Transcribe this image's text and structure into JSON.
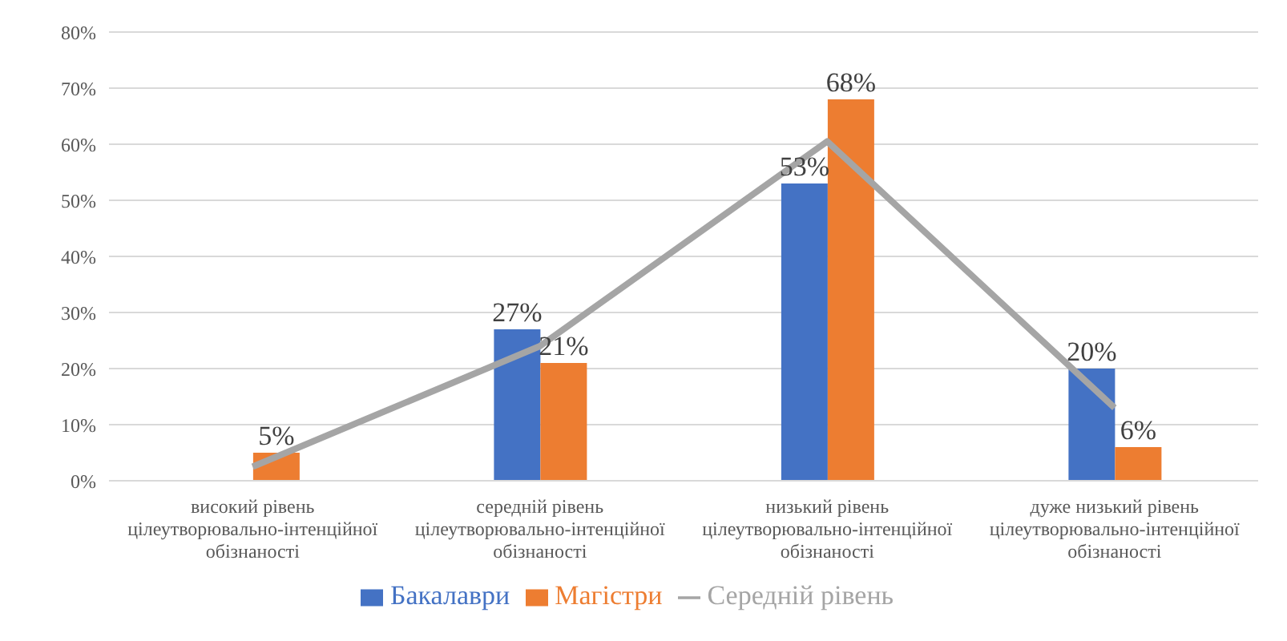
{
  "chart_data": {
    "type": "bar",
    "categories": [
      "високий рівень цілеутворювально-інтенційної обізнаності",
      "середній рівень цілеутворювально-інтенційної обізнаності",
      "низький рівень цілеутворювально-інтенційної обізнаності",
      "дуже низький рівень цілеутворювально-інтенційної обізнаності"
    ],
    "series": [
      {
        "name": "Бакалаври",
        "color": "#4472c4",
        "values": [
          null,
          27,
          53,
          20
        ],
        "value_labels": [
          null,
          "27%",
          "53%",
          "20%"
        ]
      },
      {
        "name": "Магістри",
        "color": "#ed7d31",
        "values": [
          5,
          21,
          68,
          6
        ],
        "value_labels": [
          "5%",
          "21%",
          "68%",
          "6%"
        ]
      },
      {
        "name": "Середній рівень",
        "type": "line",
        "color": "#a5a5a5",
        "values": [
          2.5,
          24,
          60.5,
          13
        ],
        "marker": "none"
      }
    ],
    "ylim": [
      0,
      80
    ],
    "yticks": [
      {
        "value": 0,
        "label": "0%"
      },
      {
        "value": 10,
        "label": "10%"
      },
      {
        "value": 20,
        "label": "20%"
      },
      {
        "value": 30,
        "label": "30%"
      },
      {
        "value": 40,
        "label": "40%"
      },
      {
        "value": 50,
        "label": "50%"
      },
      {
        "value": 60,
        "label": "60%"
      },
      {
        "value": 70,
        "label": "70%"
      },
      {
        "value": 80,
        "label": "80%"
      }
    ],
    "grid": "y",
    "legend": "bottom"
  }
}
